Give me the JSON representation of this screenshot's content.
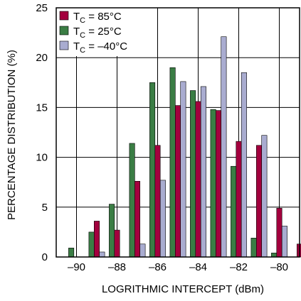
{
  "chart_data": {
    "type": "bar",
    "title": "",
    "xlabel": "LOGRITHMIC INTERCEPT (dBm)",
    "ylabel": "PERCENTAGE DISTRIBUTION (%)",
    "xlim": [
      -91,
      -79
    ],
    "ylim": [
      0,
      25
    ],
    "x_ticks": [
      -90,
      -88,
      -86,
      -84,
      -82,
      -80
    ],
    "x_tick_labels": [
      "–90",
      "–88",
      "–86",
      "–84",
      "–82",
      "–80"
    ],
    "y_ticks": [
      0,
      5,
      10,
      15,
      20,
      25
    ],
    "y_tick_labels": [
      "0",
      "5",
      "10",
      "15",
      "20",
      "25"
    ],
    "grid": true,
    "legend_position": "top-left",
    "bin_x": [
      -90,
      -89,
      -88,
      -87,
      -86,
      -85,
      -84,
      -83,
      -82,
      -81,
      -80,
      -79
    ],
    "series": [
      {
        "name_main": "T",
        "name_sub": "C",
        "name_rest": " = 85°C",
        "color": "#a3003e",
        "values": [
          0,
          3.6,
          2.7,
          7.6,
          11.2,
          15.2,
          15.6,
          14.7,
          11.6,
          11.2,
          4.9,
          1.3
        ]
      },
      {
        "name_main": "T",
        "name_sub": "C",
        "name_rest": " = 25°C",
        "color": "#3a7d44",
        "values": [
          0.9,
          2.5,
          5.3,
          11.4,
          17.5,
          19.0,
          16.7,
          14.8,
          9.1,
          1.9,
          0.4,
          0
        ]
      },
      {
        "name_main": "T",
        "name_sub": "C",
        "name_rest": " = –40°C",
        "color": "#a9acd0",
        "values": [
          0,
          0.5,
          0,
          1.3,
          7.7,
          17.6,
          17.1,
          22.1,
          18.5,
          12.2,
          3.1,
          0
        ]
      }
    ]
  }
}
